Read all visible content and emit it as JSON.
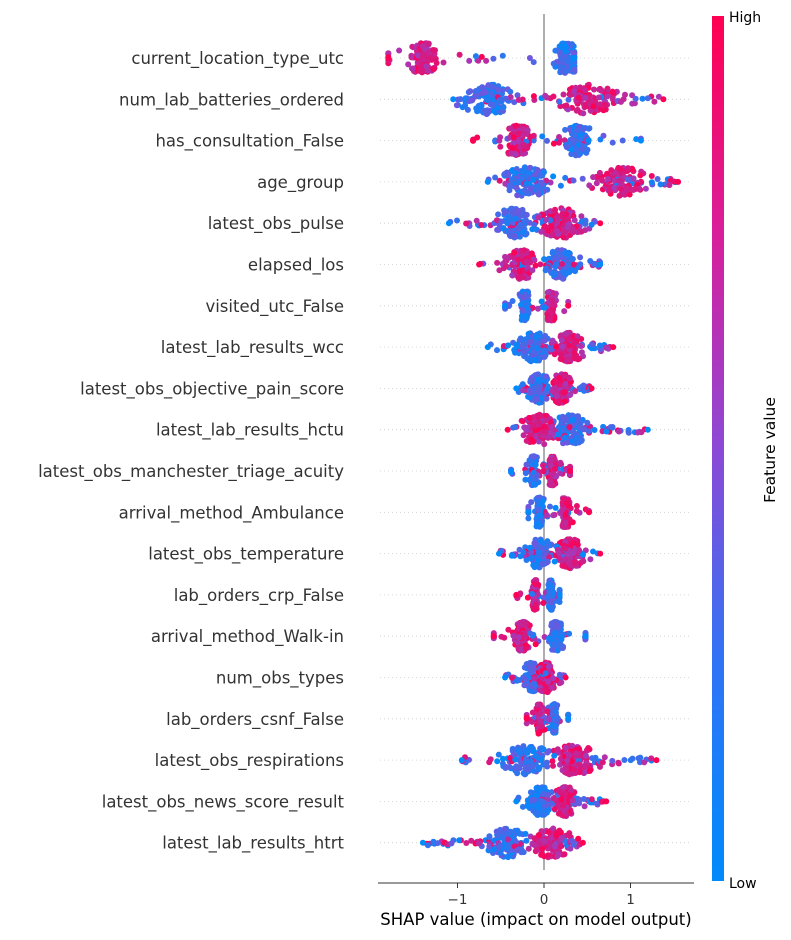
{
  "chart_data": {
    "type": "scatter",
    "subtype": "shap-beeswarm-summary",
    "xlabel": "SHAP value (impact on model output)",
    "x_ticks": [
      -1,
      0,
      1
    ],
    "x_tick_labels": [
      "−1",
      "0",
      "1"
    ],
    "xlim": [
      -1.9,
      1.75
    ],
    "colorbar": {
      "title": "Feature value",
      "high_label": "High",
      "low_label": "Low",
      "low_color": "#008bfb",
      "high_color": "#ff0052"
    },
    "features": [
      {
        "name": "current_location_type_utc",
        "min": -1.8,
        "max": 0.35,
        "shape": "two-cluster",
        "low_center": 0.25,
        "high_center": -1.4
      },
      {
        "name": "num_lab_batteries_ordered",
        "min": -1.05,
        "max": 1.38,
        "shape": "spread",
        "low_center": -0.65,
        "high_center": 0.5
      },
      {
        "name": "has_consultation_False",
        "min": -0.82,
        "max": 1.12,
        "shape": "two-cluster",
        "low_center": 0.4,
        "high_center": -0.3
      },
      {
        "name": "age_group",
        "min": -0.65,
        "max": 1.55,
        "shape": "spread",
        "low_center": -0.2,
        "high_center": 0.9
      },
      {
        "name": "latest_obs_pulse",
        "min": -1.1,
        "max": 0.65,
        "shape": "spread",
        "low_center": -0.35,
        "high_center": 0.2
      },
      {
        "name": "elapsed_los",
        "min": -0.75,
        "max": 0.65,
        "shape": "spread",
        "low_center": 0.2,
        "high_center": -0.25
      },
      {
        "name": "visited_utc_False",
        "min": -0.45,
        "max": 0.28,
        "shape": "two-cluster",
        "low_center": -0.22,
        "high_center": 0.08
      },
      {
        "name": "latest_lab_results_wcc",
        "min": -0.65,
        "max": 0.8,
        "shape": "spread",
        "low_center": -0.1,
        "high_center": 0.3
      },
      {
        "name": "latest_obs_objective_pain_score",
        "min": -0.32,
        "max": 0.55,
        "shape": "spread",
        "low_center": -0.05,
        "high_center": 0.2
      },
      {
        "name": "latest_lab_results_hctu",
        "min": -0.42,
        "max": 1.2,
        "shape": "spread",
        "low_center": 0.3,
        "high_center": -0.05
      },
      {
        "name": "latest_obs_manchester_triage_acuity",
        "min": -0.38,
        "max": 0.3,
        "shape": "two-cluster",
        "low_center": -0.12,
        "high_center": 0.1
      },
      {
        "name": "arrival_method_Ambulance",
        "min": -0.18,
        "max": 0.52,
        "shape": "two-cluster",
        "low_center": -0.05,
        "high_center": 0.25
      },
      {
        "name": "latest_obs_temperature",
        "min": -0.52,
        "max": 0.65,
        "shape": "spread",
        "low_center": -0.05,
        "high_center": 0.3
      },
      {
        "name": "lab_orders_crp_False",
        "min": -0.32,
        "max": 0.18,
        "shape": "two-cluster",
        "low_center": 0.08,
        "high_center": -0.1
      },
      {
        "name": "arrival_method_Walk-in",
        "min": -0.58,
        "max": 0.48,
        "shape": "two-cluster",
        "low_center": 0.15,
        "high_center": -0.25
      },
      {
        "name": "num_obs_types",
        "min": -0.45,
        "max": 0.25,
        "shape": "spread",
        "low_center": -0.15,
        "high_center": 0.02
      },
      {
        "name": "lab_orders_csnf_False",
        "min": -0.2,
        "max": 0.28,
        "shape": "two-cluster",
        "low_center": 0.12,
        "high_center": -0.05
      },
      {
        "name": "latest_obs_respirations",
        "min": -0.95,
        "max": 1.3,
        "shape": "spread",
        "low_center": -0.2,
        "high_center": 0.35
      },
      {
        "name": "latest_obs_news_score_result",
        "min": -0.32,
        "max": 0.72,
        "shape": "spread",
        "low_center": -0.03,
        "high_center": 0.25
      },
      {
        "name": "latest_lab_results_htrt",
        "min": -1.4,
        "max": 0.45,
        "shape": "spread",
        "low_center": -0.4,
        "high_center": 0.1
      }
    ]
  }
}
